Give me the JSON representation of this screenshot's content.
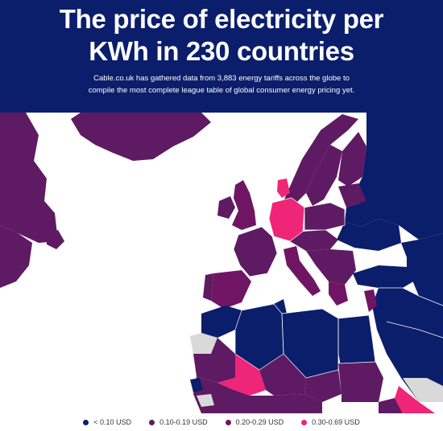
{
  "header": {
    "title_line1": "The price of electricity per",
    "title_line2": "KWh in 230 countries",
    "subtitle_line1": "Cable.co.uk has gathered data from 3,883 energy tariffs across the globe to",
    "subtitle_line2": "compile the most complete league table of global consumer energy pricing yet."
  },
  "colors": {
    "header_bg": "#0b1e6b",
    "band_lt_010": "#0b1e6b",
    "band_010_019": "#5e1a63",
    "band_020_029": "#701564",
    "band_030_069": "#ef2577",
    "no_data": "#d9d9d9",
    "sea": "#ffffff"
  },
  "legend": [
    {
      "label": "< 0.10 USD",
      "color": "#0b1e6b"
    },
    {
      "label": "0.10-0.19 USD",
      "color": "#5e1a63"
    },
    {
      "label": "0.20-0.29 USD",
      "color": "#701564"
    },
    {
      "label": "0.30-0.69 USD",
      "color": "#ef2577"
    }
  ]
}
